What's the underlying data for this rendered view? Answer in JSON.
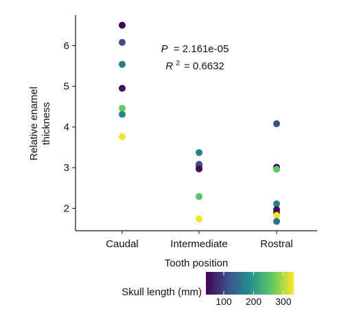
{
  "chart_data": {
    "type": "scatter",
    "xlabel": "Tooth position",
    "ylabel": "Relative enamel thickness",
    "categories": [
      "Caudal",
      "Intermediate",
      "Rostral"
    ],
    "ylim": [
      1.45,
      6.75
    ],
    "yticks": [
      2,
      3,
      4,
      5,
      6
    ],
    "grid": false,
    "annotation": {
      "p_label": "P",
      "p_value": "= 2.161e-05",
      "r2_label": "R",
      "r2_sup": "2",
      "r2_value": "= 0.6632"
    },
    "colorbar": {
      "label": "Skull length (mm)",
      "min": 40,
      "max": 335,
      "ticks": [
        100,
        200,
        300
      ],
      "colormap": "viridis"
    },
    "points": [
      {
        "category": "Caudal",
        "y": 6.5,
        "skull_length": 40
      },
      {
        "category": "Caudal",
        "y": 6.08,
        "skull_length": 110
      },
      {
        "category": "Caudal",
        "y": 5.54,
        "skull_length": 160
      },
      {
        "category": "Caudal",
        "y": 4.95,
        "skull_length": 55
      },
      {
        "category": "Caudal",
        "y": 4.46,
        "skull_length": 265
      },
      {
        "category": "Caudal",
        "y": 4.31,
        "skull_length": 175
      },
      {
        "category": "Caudal",
        "y": 3.76,
        "skull_length": 330
      },
      {
        "category": "Intermediate",
        "y": 3.37,
        "skull_length": 170
      },
      {
        "category": "Intermediate",
        "y": 3.08,
        "skull_length": 100
      },
      {
        "category": "Intermediate",
        "y": 3.04,
        "skull_length": 115
      },
      {
        "category": "Intermediate",
        "y": 2.97,
        "skull_length": 50
      },
      {
        "category": "Intermediate",
        "y": 2.29,
        "skull_length": 255
      },
      {
        "category": "Intermediate",
        "y": 1.74,
        "skull_length": 330
      },
      {
        "category": "Rostral",
        "y": 4.08,
        "skull_length": 110
      },
      {
        "category": "Rostral",
        "y": 3.01,
        "skull_length": 40
      },
      {
        "category": "Rostral",
        "y": 2.96,
        "skull_length": 260
      },
      {
        "category": "Rostral",
        "y": 2.11,
        "skull_length": 165
      },
      {
        "category": "Rostral",
        "y": 1.97,
        "skull_length": 55
      },
      {
        "category": "Rostral",
        "y": 1.89,
        "skull_length": 45
      },
      {
        "category": "Rostral",
        "y": 1.83,
        "skull_length": 330
      },
      {
        "category": "Rostral",
        "y": 1.68,
        "skull_length": 150
      }
    ]
  }
}
